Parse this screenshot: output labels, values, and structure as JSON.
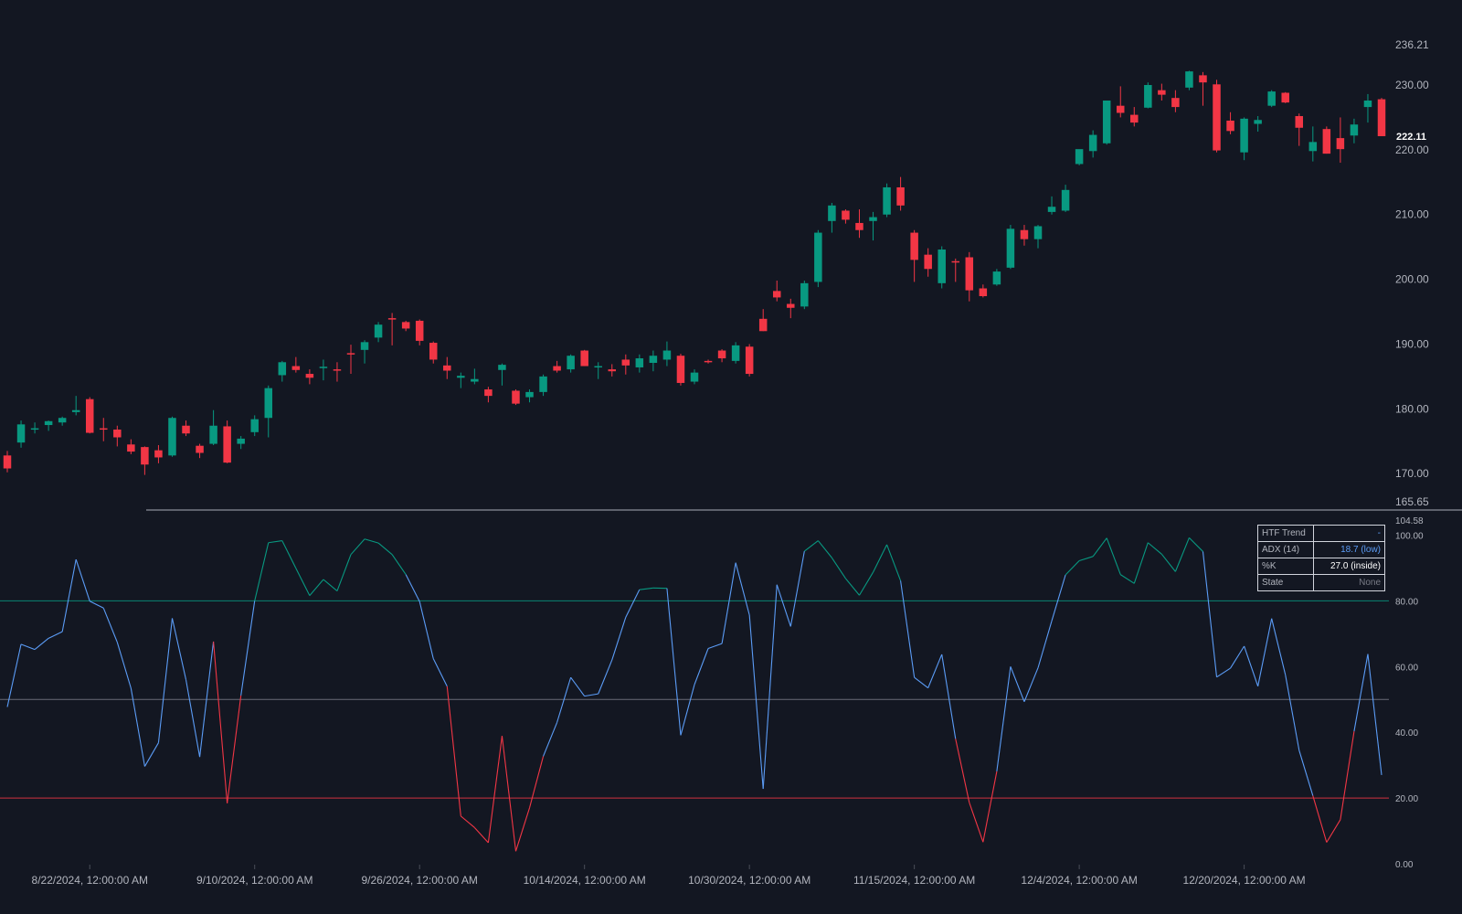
{
  "colors": {
    "background": "#131722",
    "up": "#089981",
    "down": "#f23645",
    "oscillator": "#5b9cf6",
    "upper_band": "#089981",
    "lower_band": "#f23645",
    "mid_band": "#787b86",
    "divider": "#787b86",
    "axis_text": "#b2b5be"
  },
  "price_axis": {
    "top_label": "236.21",
    "bottom_label": "165.65",
    "last_price": "222.11",
    "ticks": [
      "170.00",
      "180.00",
      "190.00",
      "200.00",
      "210.00",
      "220.00",
      "230.00"
    ]
  },
  "oscillator_axis": {
    "top_label": "104.58",
    "ticks": [
      "0.00",
      "20.00",
      "40.00",
      "60.00",
      "80.00",
      "100.00"
    ]
  },
  "date_labels": [
    "8/22/2024, 12:00:00 AM",
    "9/10/2024, 12:00:00 AM",
    "9/26/2024, 12:00:00 AM",
    "10/14/2024, 12:00:00 AM",
    "10/30/2024, 12:00:00 AM",
    "11/15/2024, 12:00:00 AM",
    "12/4/2024, 12:00:00 AM",
    "12/20/2024, 12:00:00 AM"
  ],
  "status_table": {
    "rows": [
      {
        "label": "HTF Trend",
        "value": "-",
        "color": "#5b9cf6"
      },
      {
        "label": "ADX (14)",
        "value": "18.7 (low)",
        "color": "#5b9cf6"
      },
      {
        "label": "%K",
        "value": "27.0 (inside)",
        "color": "#ffffff"
      },
      {
        "label": "State",
        "value": "None",
        "color": "#787b86"
      }
    ]
  },
  "chart_data": [
    {
      "type": "candlestick",
      "ylim": [
        165.65,
        236.21
      ],
      "candles": [
        {
          "o": 172.8,
          "h": 173.5,
          "l": 170.2,
          "c": 170.8
        },
        {
          "o": 174.8,
          "h": 178.2,
          "l": 174.0,
          "c": 177.6
        },
        {
          "o": 176.8,
          "h": 177.9,
          "l": 176.2,
          "c": 177.0
        },
        {
          "o": 177.5,
          "h": 178.2,
          "l": 176.6,
          "c": 178.1
        },
        {
          "o": 177.9,
          "h": 178.8,
          "l": 177.4,
          "c": 178.6
        },
        {
          "o": 179.5,
          "h": 182.0,
          "l": 179.0,
          "c": 179.8
        },
        {
          "o": 181.5,
          "h": 181.8,
          "l": 176.2,
          "c": 176.3
        },
        {
          "o": 177.0,
          "h": 178.6,
          "l": 175.0,
          "c": 176.8
        },
        {
          "o": 176.8,
          "h": 177.4,
          "l": 174.2,
          "c": 175.6
        },
        {
          "o": 174.5,
          "h": 175.3,
          "l": 173.0,
          "c": 173.4
        },
        {
          "o": 174.1,
          "h": 174.2,
          "l": 169.8,
          "c": 171.4
        },
        {
          "o": 173.6,
          "h": 174.4,
          "l": 171.6,
          "c": 172.5
        },
        {
          "o": 172.8,
          "h": 178.8,
          "l": 172.6,
          "c": 178.6
        },
        {
          "o": 177.4,
          "h": 178.2,
          "l": 175.8,
          "c": 176.2
        },
        {
          "o": 174.3,
          "h": 174.6,
          "l": 172.4,
          "c": 173.2
        },
        {
          "o": 174.6,
          "h": 179.8,
          "l": 174.4,
          "c": 177.4
        },
        {
          "o": 177.3,
          "h": 178.2,
          "l": 171.6,
          "c": 171.7
        },
        {
          "o": 174.6,
          "h": 175.8,
          "l": 173.8,
          "c": 175.4
        },
        {
          "o": 176.4,
          "h": 179.0,
          "l": 175.8,
          "c": 178.4
        },
        {
          "o": 178.6,
          "h": 183.6,
          "l": 175.6,
          "c": 183.2
        },
        {
          "o": 185.2,
          "h": 187.4,
          "l": 184.2,
          "c": 187.2
        },
        {
          "o": 186.6,
          "h": 188.0,
          "l": 185.6,
          "c": 186.0
        },
        {
          "o": 185.4,
          "h": 186.1,
          "l": 183.8,
          "c": 184.8
        },
        {
          "o": 186.4,
          "h": 187.6,
          "l": 184.4,
          "c": 186.5
        },
        {
          "o": 186.1,
          "h": 187.2,
          "l": 184.2,
          "c": 186.0
        },
        {
          "o": 188.6,
          "h": 189.9,
          "l": 185.4,
          "c": 188.4
        },
        {
          "o": 189.1,
          "h": 190.6,
          "l": 187.0,
          "c": 190.3
        },
        {
          "o": 191.0,
          "h": 193.4,
          "l": 190.3,
          "c": 193.0
        },
        {
          "o": 194.0,
          "h": 194.8,
          "l": 189.8,
          "c": 193.8
        },
        {
          "o": 193.4,
          "h": 193.6,
          "l": 192.0,
          "c": 192.4
        },
        {
          "o": 193.6,
          "h": 193.8,
          "l": 189.8,
          "c": 190.5
        },
        {
          "o": 190.2,
          "h": 190.4,
          "l": 187.0,
          "c": 187.6
        },
        {
          "o": 186.7,
          "h": 188.0,
          "l": 184.6,
          "c": 185.9
        },
        {
          "o": 184.8,
          "h": 185.6,
          "l": 183.2,
          "c": 185.1
        },
        {
          "o": 184.2,
          "h": 186.2,
          "l": 183.8,
          "c": 184.6
        },
        {
          "o": 183.0,
          "h": 183.4,
          "l": 181.0,
          "c": 182.0
        },
        {
          "o": 186.0,
          "h": 187.0,
          "l": 183.6,
          "c": 186.8
        },
        {
          "o": 182.8,
          "h": 183.0,
          "l": 180.6,
          "c": 180.8
        },
        {
          "o": 181.8,
          "h": 183.0,
          "l": 181.0,
          "c": 182.6
        },
        {
          "o": 182.6,
          "h": 185.3,
          "l": 182.0,
          "c": 185.0
        },
        {
          "o": 186.6,
          "h": 187.4,
          "l": 185.6,
          "c": 185.9
        },
        {
          "o": 186.1,
          "h": 188.4,
          "l": 185.6,
          "c": 188.2
        },
        {
          "o": 189.0,
          "h": 189.1,
          "l": 186.6,
          "c": 186.6
        },
        {
          "o": 186.6,
          "h": 187.2,
          "l": 184.6,
          "c": 186.6
        },
        {
          "o": 186.1,
          "h": 186.9,
          "l": 185.0,
          "c": 185.8
        },
        {
          "o": 187.6,
          "h": 188.4,
          "l": 185.3,
          "c": 186.7
        },
        {
          "o": 186.4,
          "h": 188.4,
          "l": 185.6,
          "c": 187.8
        },
        {
          "o": 187.1,
          "h": 189.0,
          "l": 185.8,
          "c": 188.2
        },
        {
          "o": 187.6,
          "h": 190.4,
          "l": 186.6,
          "c": 189.0
        },
        {
          "o": 188.2,
          "h": 188.5,
          "l": 183.6,
          "c": 184.0
        },
        {
          "o": 184.2,
          "h": 186.1,
          "l": 183.8,
          "c": 185.6
        },
        {
          "o": 187.4,
          "h": 187.6,
          "l": 187.0,
          "c": 187.2
        },
        {
          "o": 189.0,
          "h": 189.2,
          "l": 187.2,
          "c": 187.8
        },
        {
          "o": 187.4,
          "h": 190.3,
          "l": 187.0,
          "c": 189.8
        },
        {
          "o": 189.6,
          "h": 190.0,
          "l": 185.0,
          "c": 185.4
        },
        {
          "o": 193.9,
          "h": 195.4,
          "l": 192.0,
          "c": 192.0
        },
        {
          "o": 198.2,
          "h": 199.8,
          "l": 196.6,
          "c": 197.2
        },
        {
          "o": 196.2,
          "h": 197.0,
          "l": 194.0,
          "c": 195.6
        },
        {
          "o": 195.8,
          "h": 199.8,
          "l": 195.4,
          "c": 199.4
        },
        {
          "o": 199.6,
          "h": 207.6,
          "l": 198.8,
          "c": 207.2
        },
        {
          "o": 209.0,
          "h": 211.8,
          "l": 207.2,
          "c": 211.4
        },
        {
          "o": 210.6,
          "h": 210.8,
          "l": 208.6,
          "c": 209.2
        },
        {
          "o": 208.7,
          "h": 210.8,
          "l": 206.4,
          "c": 207.6
        },
        {
          "o": 209.0,
          "h": 210.4,
          "l": 206.0,
          "c": 209.6
        },
        {
          "o": 210.0,
          "h": 214.8,
          "l": 209.6,
          "c": 214.2
        },
        {
          "o": 214.2,
          "h": 215.8,
          "l": 210.6,
          "c": 211.4
        },
        {
          "o": 207.2,
          "h": 207.6,
          "l": 199.6,
          "c": 203.0
        },
        {
          "o": 203.8,
          "h": 204.8,
          "l": 200.4,
          "c": 201.6
        },
        {
          "o": 199.4,
          "h": 205.1,
          "l": 198.6,
          "c": 204.6
        },
        {
          "o": 202.8,
          "h": 203.2,
          "l": 199.6,
          "c": 202.6
        },
        {
          "o": 203.4,
          "h": 204.2,
          "l": 196.6,
          "c": 198.3
        },
        {
          "o": 198.6,
          "h": 199.2,
          "l": 197.2,
          "c": 197.4
        },
        {
          "o": 199.2,
          "h": 201.6,
          "l": 199.0,
          "c": 201.2
        },
        {
          "o": 201.8,
          "h": 208.4,
          "l": 201.6,
          "c": 207.8
        },
        {
          "o": 207.6,
          "h": 208.4,
          "l": 205.2,
          "c": 206.2
        },
        {
          "o": 206.2,
          "h": 208.4,
          "l": 204.8,
          "c": 208.2
        },
        {
          "o": 210.4,
          "h": 212.8,
          "l": 210.0,
          "c": 211.2
        },
        {
          "o": 210.6,
          "h": 214.6,
          "l": 210.4,
          "c": 213.8
        },
        {
          "o": 217.8,
          "h": 220.0,
          "l": 217.6,
          "c": 220.1
        },
        {
          "o": 219.8,
          "h": 223.0,
          "l": 218.8,
          "c": 222.3
        },
        {
          "o": 221.0,
          "h": 227.6,
          "l": 220.8,
          "c": 227.6
        },
        {
          "o": 226.8,
          "h": 229.8,
          "l": 225.0,
          "c": 225.7
        },
        {
          "o": 225.4,
          "h": 226.6,
          "l": 223.6,
          "c": 224.2
        },
        {
          "o": 226.5,
          "h": 230.4,
          "l": 226.4,
          "c": 230.0
        },
        {
          "o": 229.2,
          "h": 230.2,
          "l": 227.6,
          "c": 228.5
        },
        {
          "o": 228.0,
          "h": 229.2,
          "l": 225.8,
          "c": 226.6
        },
        {
          "o": 229.6,
          "h": 232.2,
          "l": 229.2,
          "c": 232.1
        },
        {
          "o": 231.5,
          "h": 232.0,
          "l": 226.8,
          "c": 230.4
        },
        {
          "o": 230.1,
          "h": 230.8,
          "l": 219.6,
          "c": 219.9
        },
        {
          "o": 224.5,
          "h": 225.8,
          "l": 222.4,
          "c": 222.9
        },
        {
          "o": 219.6,
          "h": 225.0,
          "l": 218.4,
          "c": 224.8
        },
        {
          "o": 224.0,
          "h": 225.2,
          "l": 222.8,
          "c": 224.6
        },
        {
          "o": 226.8,
          "h": 229.2,
          "l": 226.6,
          "c": 229.0
        },
        {
          "o": 228.8,
          "h": 228.9,
          "l": 227.2,
          "c": 227.3
        },
        {
          "o": 225.2,
          "h": 225.6,
          "l": 220.6,
          "c": 223.4
        },
        {
          "o": 219.8,
          "h": 223.6,
          "l": 218.2,
          "c": 221.2
        },
        {
          "o": 223.2,
          "h": 223.6,
          "l": 219.4,
          "c": 219.4
        },
        {
          "o": 221.8,
          "h": 225.0,
          "l": 218.0,
          "c": 220.1
        },
        {
          "o": 222.2,
          "h": 224.8,
          "l": 221.0,
          "c": 223.9
        },
        {
          "o": 226.6,
          "h": 228.6,
          "l": 224.2,
          "c": 227.6
        },
        {
          "o": 227.8,
          "h": 228.0,
          "l": 222.1,
          "c": 222.1
        }
      ]
    },
    {
      "type": "line",
      "name": "%K",
      "ylim": [
        0,
        104.58
      ],
      "bands": [
        80,
        50,
        20
      ],
      "values": [
        47.7,
        66.8,
        65.2,
        68.6,
        70.6,
        92.6,
        79.9,
        77.8,
        67.4,
        53.4,
        29.6,
        36.8,
        74.7,
        56.0,
        32.5,
        67.6,
        18.4,
        51.2,
        80.0,
        97.7,
        98.3,
        89.9,
        81.6,
        86.5,
        83.0,
        94.1,
        98.8,
        97.6,
        94.1,
        88.0,
        79.8,
        62.4,
        54.0,
        14.5,
        11.0,
        6.4,
        38.9,
        3.8,
        17.0,
        32.7,
        43.0,
        56.7,
        51.0,
        51.7,
        62.0,
        75.0,
        83.4,
        83.9,
        83.8,
        39.1,
        54.5,
        65.5,
        67.0,
        91.6,
        75.7,
        22.8,
        84.9,
        72.2,
        95.1,
        98.3,
        93.1,
        86.8,
        81.7,
        88.7,
        97.1,
        86.1,
        56.7,
        53.5,
        63.7,
        38.0,
        18.6,
        6.6,
        28.1,
        60.0,
        49.3,
        59.6,
        73.9,
        87.9,
        92.2,
        93.5,
        99.1,
        88.0,
        85.3,
        97.7,
        94.2,
        88.9,
        99.2,
        95.0,
        56.8,
        59.5,
        66.2,
        54.0,
        74.6,
        57.5,
        34.5,
        20.7,
        6.5,
        13.4,
        40.3,
        63.8,
        27.0
      ]
    }
  ]
}
